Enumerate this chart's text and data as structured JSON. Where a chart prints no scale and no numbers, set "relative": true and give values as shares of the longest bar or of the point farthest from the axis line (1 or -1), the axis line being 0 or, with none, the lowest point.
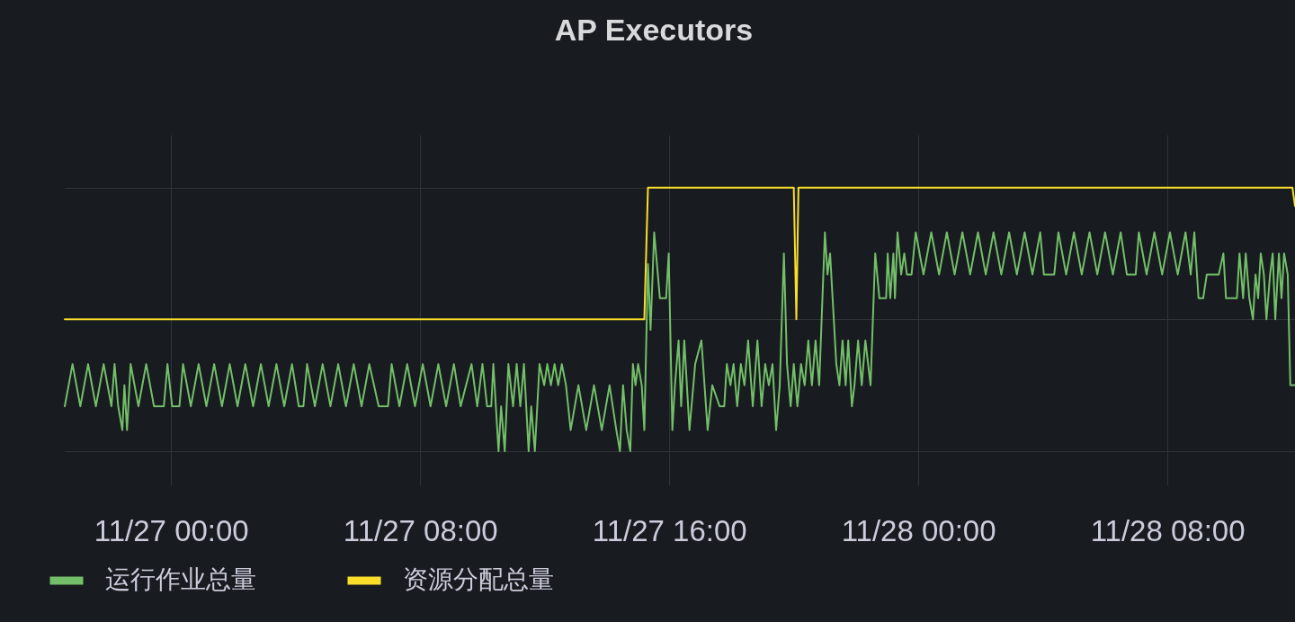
{
  "chart_data": {
    "type": "line",
    "title": "AP Executors",
    "relative": true,
    "xlim": [
      "--11-26T20:35",
      "--11-28T12:06"
    ],
    "xticks": [
      {
        "value": "--11-27T00:00",
        "label": "11/27 00:00"
      },
      {
        "value": "--11-27T08:00",
        "label": "11/27 08:00"
      },
      {
        "value": "--11-27T16:00",
        "label": "11/27 16:00"
      },
      {
        "value": "--11-28T00:00",
        "label": "11/28 00:00"
      },
      {
        "value": "--11-28T08:00",
        "label": "11/28 08:00"
      }
    ],
    "grid": true,
    "legend": "bottom left",
    "series": [
      {
        "name": "运行作业总量",
        "color": "#73bf69",
        "x": [
          "--11-26T20:35",
          "--11-26T20:50",
          "--11-26T21:05",
          "--11-26T21:20",
          "--11-26T21:35",
          "--11-26T21:50",
          "--11-26T22:05",
          "--11-26T22:11",
          "--11-26T22:18",
          "--11-26T22:26",
          "--11-26T22:30",
          "--11-26T22:35",
          "--11-26T22:42",
          "--11-26T22:57",
          "--11-26T23:12",
          "--11-26T23:27",
          "--11-26T23:46",
          "--11-26T23:53",
          "--11-27T00:02",
          "--11-27T00:16",
          "--11-27T00:23",
          "--11-27T00:38",
          "--11-27T00:53",
          "--11-27T01:08",
          "--11-27T01:23",
          "--11-27T01:38",
          "--11-27T01:53",
          "--11-27T02:08",
          "--11-27T02:23",
          "--11-27T02:38",
          "--11-27T02:53",
          "--11-27T03:08",
          "--11-27T03:23",
          "--11-27T03:38",
          "--11-27T03:53",
          "--11-27T04:06",
          "--11-27T04:15",
          "--11-27T04:22",
          "--11-27T04:37",
          "--11-27T04:52",
          "--11-27T05:07",
          "--11-27T05:22",
          "--11-27T05:37",
          "--11-27T05:52",
          "--11-27T06:07",
          "--11-27T06:22",
          "--11-27T06:40",
          "--11-27T06:58",
          "--11-27T07:05",
          "--11-27T07:20",
          "--11-27T07:35",
          "--11-27T07:50",
          "--11-27T08:05",
          "--11-27T08:20",
          "--11-27T08:35",
          "--11-27T08:50",
          "--11-27T09:05",
          "--11-27T09:18",
          "--11-27T09:39",
          "--11-27T09:50",
          "--11-27T10:00",
          "--11-27T10:09",
          "--11-27T10:17",
          "--11-27T10:21",
          "--11-27T10:31",
          "--11-27T10:36",
          "--11-27T10:43",
          "--11-27T10:50",
          "--11-27T10:59",
          "--11-27T11:06",
          "--11-27T11:13",
          "--11-27T11:20",
          "--11-27T11:29",
          "--11-27T11:34",
          "--11-27T11:41",
          "--11-27T11:50",
          "--11-27T11:59",
          "--11-27T12:05",
          "--11-27T12:12",
          "--11-27T12:19",
          "--11-27T12:26",
          "--11-27T12:33",
          "--11-27T12:41",
          "--11-27T12:50",
          "--11-27T13:05",
          "--11-27T13:20",
          "--11-27T13:35",
          "--11-27T13:50",
          "--11-27T14:05",
          "--11-27T14:18",
          "--11-27T14:25",
          "--11-27T14:31",
          "--11-27T14:38",
          "--11-27T14:45",
          "--11-27T14:50",
          "--11-27T14:55",
          "--11-27T15:00",
          "--11-27T15:07",
          "--11-27T15:12",
          "--11-27T15:19",
          "--11-27T15:24",
          "--11-27T15:31",
          "--11-27T15:42",
          "--11-27T15:54",
          "--11-27T15:59",
          "--11-27T16:06",
          "--11-27T16:11",
          "--11-27T16:18",
          "--11-27T16:23",
          "--11-27T16:29",
          "--11-27T16:39",
          "--11-27T16:50",
          "--11-27T17:02",
          "--11-27T17:14",
          "--11-27T17:23",
          "--11-27T17:37",
          "--11-27T17:46",
          "--11-27T17:51",
          "--11-27T17:58",
          "--11-27T18:04",
          "--11-27T18:11",
          "--11-27T18:18",
          "--11-27T18:25",
          "--11-27T18:32",
          "--11-27T18:41",
          "--11-27T18:50",
          "--11-27T18:58",
          "--11-27T19:05",
          "--11-27T19:12",
          "--11-27T19:19",
          "--11-27T19:26",
          "--11-27T19:33",
          "--11-27T19:41",
          "--11-27T19:47",
          "--11-27T19:54",
          "--11-27T20:00",
          "--11-27T20:07",
          "--11-27T20:14",
          "--11-27T20:21",
          "--11-27T20:28",
          "--11-27T20:35",
          "--11-27T20:42",
          "--11-27T20:49",
          "--11-27T21:00",
          "--11-27T21:05",
          "--11-27T21:10",
          "--11-27T21:22",
          "--11-27T21:28",
          "--11-27T21:34",
          "--11-27T21:40",
          "--11-27T21:45",
          "--11-27T21:52",
          "--11-27T21:57",
          "--11-27T22:04",
          "--11-27T22:11",
          "--11-27T22:18",
          "--11-27T22:28",
          "--11-27T22:37",
          "--11-27T22:45",
          "--11-27T22:58",
          "--11-27T23:01",
          "--11-27T23:06",
          "--11-27T23:12",
          "--11-27T23:15",
          "--11-27T23:20",
          "--11-27T23:27",
          "--11-27T23:33",
          "--11-27T23:38",
          "--11-27T23:47",
          "--11-27T23:55",
          "--11-28T00:10",
          "--11-28T00:25",
          "--11-28T00:40",
          "--11-28T00:55",
          "--11-28T01:10",
          "--11-28T01:25",
          "--11-28T01:40",
          "--11-28T01:55",
          "--11-28T02:10",
          "--11-28T02:25",
          "--11-28T02:40",
          "--11-28T02:55",
          "--11-28T03:10",
          "--11-28T03:25",
          "--11-28T03:40",
          "--11-28T03:55",
          "--11-28T04:02",
          "--11-28T04:22",
          "--11-28T04:30",
          "--11-28T04:45",
          "--11-28T05:00",
          "--11-28T05:15",
          "--11-28T05:30",
          "--11-28T05:45",
          "--11-28T06:00",
          "--11-28T06:15",
          "--11-28T06:30",
          "--11-28T06:42",
          "--11-28T06:59",
          "--11-28T07:05",
          "--11-28T07:20",
          "--11-28T07:35",
          "--11-28T07:50",
          "--11-28T08:05",
          "--11-28T08:20",
          "--11-28T08:35",
          "--11-28T08:45",
          "--11-28T08:52",
          "--11-28T09:00",
          "--11-28T09:09",
          "--11-28T09:16",
          "--11-28T09:39",
          "--11-28T09:48",
          "--11-28T09:53",
          "--11-28T10:14",
          "--11-28T10:19",
          "--11-28T10:26",
          "--11-28T10:31",
          "--11-28T10:38",
          "--11-28T10:45",
          "--11-28T10:50",
          "--11-28T10:55",
          "--11-28T11:00",
          "--11-28T11:06",
          "--11-28T11:11",
          "--11-28T11:18",
          "--11-28T11:23",
          "--11-28T11:28",
          "--11-28T11:35",
          "--11-28T11:40",
          "--11-28T11:45",
          "--11-28T11:52",
          "--11-28T11:57",
          "--11-28T12:06"
        ],
        "values": [
          0.17,
          0.33,
          0.17,
          0.33,
          0.17,
          0.33,
          0.17,
          0.33,
          0.17,
          0.08,
          0.25,
          0.08,
          0.33,
          0.17,
          0.33,
          0.17,
          0.17,
          0.33,
          0.17,
          0.17,
          0.33,
          0.17,
          0.33,
          0.17,
          0.33,
          0.17,
          0.33,
          0.17,
          0.33,
          0.17,
          0.33,
          0.17,
          0.33,
          0.17,
          0.33,
          0.17,
          0.17,
          0.33,
          0.17,
          0.33,
          0.17,
          0.33,
          0.17,
          0.33,
          0.17,
          0.33,
          0.17,
          0.17,
          0.33,
          0.17,
          0.33,
          0.17,
          0.33,
          0.17,
          0.33,
          0.17,
          0.33,
          0.17,
          0.33,
          0.17,
          0.33,
          0.17,
          0.17,
          0.33,
          0,
          0.17,
          0,
          0.33,
          0.17,
          0.33,
          0.17,
          0.33,
          0,
          0.17,
          0,
          0.33,
          0.25,
          0.33,
          0.25,
          0.33,
          0.25,
          0.33,
          0.25,
          0.08,
          0.25,
          0.08,
          0.25,
          0.08,
          0.25,
          0.08,
          0,
          0.25,
          0.08,
          0,
          0.33,
          0.25,
          0.33,
          0.25,
          0.08,
          0.71,
          0.46,
          0.83,
          0.58,
          0.58,
          0.75,
          0.08,
          0.25,
          0.42,
          0.17,
          0.42,
          0.08,
          0.33,
          0.42,
          0.08,
          0.25,
          0.17,
          0.17,
          0.33,
          0.25,
          0.33,
          0.17,
          0.33,
          0.25,
          0.42,
          0.17,
          0.42,
          0.17,
          0.33,
          0.25,
          0.33,
          0.08,
          0.25,
          0.75,
          0.33,
          0.17,
          0.33,
          0.17,
          0.33,
          0.25,
          0.42,
          0.25,
          0.42,
          0.25,
          0.83,
          0.67,
          0.75,
          0.33,
          0.25,
          0.42,
          0.25,
          0.42,
          0.17,
          0.25,
          0.42,
          0.25,
          0.42,
          0.25,
          0.75,
          0.58,
          0.58,
          0.75,
          0.58,
          0.75,
          0.58,
          0.83,
          0.67,
          0.75,
          0.67,
          0.67,
          0.83,
          0.67,
          0.83,
          0.67,
          0.83,
          0.67,
          0.83,
          0.67,
          0.83,
          0.67,
          0.83,
          0.67,
          0.83,
          0.67,
          0.83,
          0.67,
          0.83,
          0.67,
          0.67,
          0.83,
          0.67,
          0.83,
          0.67,
          0.83,
          0.67,
          0.83,
          0.67,
          0.83,
          0.67,
          0.67,
          0.83,
          0.67,
          0.83,
          0.67,
          0.83,
          0.67,
          0.83,
          0.67,
          0.83,
          0.58,
          0.58,
          0.67,
          0.67,
          0.75,
          0.58,
          0.58,
          0.75,
          0.58,
          0.75,
          0.58,
          0.5,
          0.67,
          0.58,
          0.75,
          0.67,
          0.5,
          0.67,
          0.75,
          0.5,
          0.75,
          0.58,
          0.75,
          0.67,
          0.25,
          0.25
        ]
      },
      {
        "name": "资源分配总量",
        "color": "#fade2a",
        "x": [
          "--11-26T20:35",
          "--11-27T15:12",
          "--11-27T15:19",
          "--11-27T20:00",
          "--11-27T20:05",
          "--11-27T20:09",
          "--11-28T12:01",
          "--11-28T12:06"
        ],
        "values": [
          0.5,
          0.5,
          1,
          1,
          0.5,
          1,
          1,
          0.93
        ]
      }
    ]
  }
}
